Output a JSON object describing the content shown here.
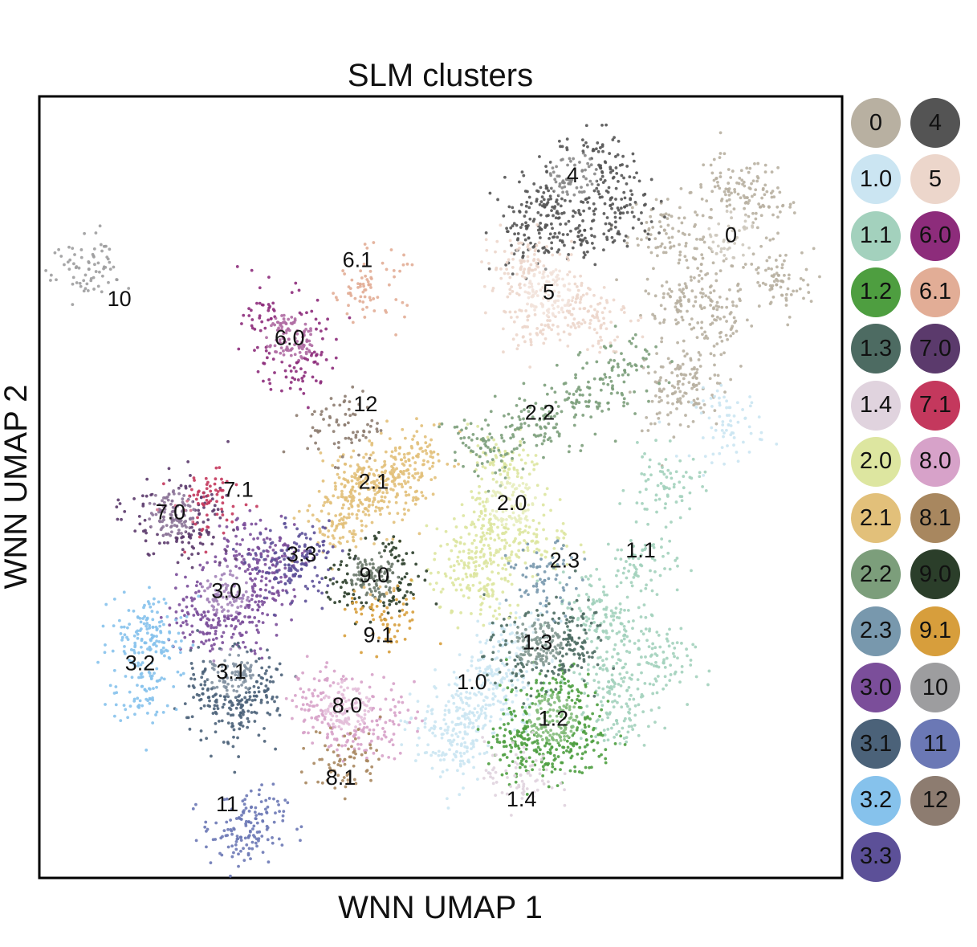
{
  "chart_data": {
    "type": "scatter",
    "title": "SLM clusters",
    "xlabel": "WNN UMAP 1",
    "ylabel": "WNN UMAP 2",
    "xlim": [
      0,
      100
    ],
    "ylim": [
      0,
      100
    ],
    "grid": false,
    "ticks": false,
    "legend_position": "right",
    "legend_layout": "two-column",
    "series": [
      {
        "name": "0",
        "color": "#b8b0a1",
        "points": [
          [
            84.5,
            80
          ],
          [
            84,
            72
          ],
          [
            80,
            74
          ],
          [
            78,
            83
          ],
          [
            90,
            86
          ],
          [
            86,
            88
          ],
          [
            82,
            64
          ],
          [
            79,
            62
          ],
          [
            92,
            76
          ]
        ]
      },
      {
        "name": "1.0",
        "color": "#cbe5f2",
        "points": [
          [
            56,
            26
          ],
          [
            58,
            23
          ],
          [
            50,
            19
          ],
          [
            54,
            21
          ],
          [
            59,
            30
          ],
          [
            52,
            16
          ],
          [
            86,
            58
          ]
        ]
      },
      {
        "name": "1.1",
        "color": "#a3d1bd",
        "points": [
          [
            75,
            40
          ],
          [
            73,
            31
          ],
          [
            71,
            25
          ],
          [
            78,
            50
          ],
          [
            69,
            35
          ],
          [
            77,
            27
          ],
          [
            72,
            20
          ]
        ]
      },
      {
        "name": "1.2",
        "color": "#4e9e40",
        "points": [
          [
            64,
            20
          ],
          [
            62,
            16
          ],
          [
            66,
            23
          ],
          [
            60,
            18
          ],
          [
            67,
            17
          ],
          [
            63,
            21
          ]
        ]
      },
      {
        "name": "1.3",
        "color": "#4d6b62",
        "points": [
          [
            62,
            30
          ],
          [
            60,
            28
          ],
          [
            64,
            29
          ],
          [
            66,
            31
          ]
        ]
      },
      {
        "name": "1.4",
        "color": "#e0d3de",
        "points": [
          [
            60,
            13
          ]
        ]
      },
      {
        "name": "2.0",
        "color": "#dde6a0",
        "points": [
          [
            57,
            46
          ],
          [
            59,
            49
          ],
          [
            55,
            43
          ],
          [
            62,
            43
          ],
          [
            58,
            53
          ],
          [
            53,
            40
          ],
          [
            56,
            36
          ]
        ]
      },
      {
        "name": "2.1",
        "color": "#e2c07a",
        "points": [
          [
            42,
            50
          ],
          [
            45,
            52
          ],
          [
            40,
            48
          ],
          [
            47,
            54
          ],
          [
            37,
            45
          ],
          [
            39,
            50
          ]
        ]
      },
      {
        "name": "2.2",
        "color": "#7c9e7b",
        "points": [
          [
            62,
            58
          ],
          [
            67,
            61
          ],
          [
            55,
            55
          ],
          [
            73,
            65
          ]
        ]
      },
      {
        "name": "2.3",
        "color": "#7898ad",
        "points": [
          [
            63,
            38
          ]
        ]
      },
      {
        "name": "3.0",
        "color": "#7b4e9a",
        "points": [
          [
            22,
            36
          ],
          [
            26,
            42
          ],
          [
            20,
            33
          ],
          [
            27,
            36
          ],
          [
            24,
            33
          ],
          [
            29,
            40
          ]
        ]
      },
      {
        "name": "3.1",
        "color": "#4b6279",
        "points": [
          [
            23,
            25
          ],
          [
            21,
            23
          ],
          [
            25,
            21
          ],
          [
            27,
            25
          ]
        ]
      },
      {
        "name": "3.2",
        "color": "#86c2ec",
        "points": [
          [
            13,
            30
          ],
          [
            13,
            24
          ],
          [
            14,
            32
          ]
        ]
      },
      {
        "name": "3.3",
        "color": "#5c5098",
        "points": [
          [
            31,
            40
          ],
          [
            33,
            41
          ]
        ]
      },
      {
        "name": "4",
        "color": "#545454",
        "points": [
          [
            66,
            89
          ],
          [
            63,
            86
          ],
          [
            61,
            82
          ],
          [
            70,
            91
          ],
          [
            73,
            86
          ],
          [
            68,
            83
          ]
        ]
      },
      {
        "name": "5",
        "color": "#ecd6cb",
        "points": [
          [
            63,
            76
          ],
          [
            60,
            78
          ],
          [
            66,
            74
          ],
          [
            61,
            72
          ],
          [
            69,
            72
          ]
        ]
      },
      {
        "name": "6.0",
        "color": "#8d2c7b",
        "points": [
          [
            31,
            69
          ],
          [
            32,
            66
          ],
          [
            30,
            71
          ]
        ]
      },
      {
        "name": "6.1",
        "color": "#e2ad96",
        "points": [
          [
            41,
            76
          ]
        ]
      },
      {
        "name": "7.0",
        "color": "#5b3a6c",
        "points": [
          [
            15,
            47
          ],
          [
            17,
            45
          ],
          [
            19,
            46
          ]
        ]
      },
      {
        "name": "7.1",
        "color": "#c4385d",
        "points": [
          [
            21,
            48
          ]
        ]
      },
      {
        "name": "8.0",
        "color": "#d7a2c9",
        "points": [
          [
            38,
            21
          ],
          [
            37,
            20
          ],
          [
            42,
            20
          ],
          [
            36,
            23
          ]
        ]
      },
      {
        "name": "8.1",
        "color": "#a8875f",
        "points": [
          [
            38,
            15
          ]
        ]
      },
      {
        "name": "9.0",
        "color": "#2b3e2a",
        "points": [
          [
            42,
            38
          ],
          [
            44,
            39
          ],
          [
            40,
            38
          ]
        ]
      },
      {
        "name": "9.1",
        "color": "#d79e3c",
        "points": [
          [
            43,
            33
          ]
        ]
      },
      {
        "name": "10",
        "color": "#9d9d9f",
        "points": [
          [
            6,
            78
          ]
        ]
      },
      {
        "name": "11",
        "color": "#6b78b5",
        "points": [
          [
            26,
            7
          ],
          [
            25,
            5
          ]
        ]
      },
      {
        "name": "12",
        "color": "#8d7c70",
        "points": [
          [
            38,
            58
          ]
        ]
      }
    ],
    "cluster_labels": [
      {
        "text": "0",
        "x": 86.3,
        "y": 82.4,
        "badge": true
      },
      {
        "text": "4",
        "x": 66.5,
        "y": 90.1,
        "badge": true
      },
      {
        "text": "5",
        "x": 63.5,
        "y": 75.1,
        "badge": true
      },
      {
        "text": "6.0",
        "x": 31.1,
        "y": 69.2,
        "badge": true
      },
      {
        "text": "6.1",
        "x": 39.6,
        "y": 79.2,
        "badge": false
      },
      {
        "text": "10",
        "x": 9.8,
        "y": 74.2,
        "badge": false
      },
      {
        "text": "12",
        "x": 40.6,
        "y": 60.7,
        "badge": false
      },
      {
        "text": "2.2",
        "x": 62.4,
        "y": 59.6,
        "badge": false
      },
      {
        "text": "2.1",
        "x": 41.6,
        "y": 50.7,
        "badge": false
      },
      {
        "text": "2.0",
        "x": 58.9,
        "y": 48.0,
        "badge": true
      },
      {
        "text": "7.1",
        "x": 24.7,
        "y": 49.7,
        "badge": false
      },
      {
        "text": "7.0",
        "x": 16.2,
        "y": 46.8,
        "badge": true
      },
      {
        "text": "3.3",
        "x": 32.6,
        "y": 41.4,
        "badge": false
      },
      {
        "text": "9.0",
        "x": 41.7,
        "y": 38.7,
        "badge": true
      },
      {
        "text": "2.3",
        "x": 65.5,
        "y": 40.6,
        "badge": false
      },
      {
        "text": "1.1",
        "x": 75.0,
        "y": 41.9,
        "badge": false
      },
      {
        "text": "3.0",
        "x": 23.2,
        "y": 36.7,
        "badge": true
      },
      {
        "text": "9.1",
        "x": 42.2,
        "y": 31.0,
        "badge": false
      },
      {
        "text": "1.3",
        "x": 62.1,
        "y": 30.1,
        "badge": true
      },
      {
        "text": "3.2",
        "x": 12.4,
        "y": 27.4,
        "badge": false
      },
      {
        "text": "3.1",
        "x": 23.8,
        "y": 26.3,
        "badge": true
      },
      {
        "text": "1.0",
        "x": 53.9,
        "y": 25.0,
        "badge": false
      },
      {
        "text": "8.0",
        "x": 38.3,
        "y": 22.0,
        "badge": true
      },
      {
        "text": "1.2",
        "x": 64.1,
        "y": 20.3,
        "badge": true
      },
      {
        "text": "8.1",
        "x": 37.5,
        "y": 12.7,
        "badge": false
      },
      {
        "text": "1.4",
        "x": 60.1,
        "y": 9.9,
        "badge": false
      },
      {
        "text": "11",
        "x": 23.3,
        "y": 9.3,
        "badge": false
      }
    ]
  },
  "legend": {
    "items": [
      {
        "label": "0",
        "color": "#b8b0a1"
      },
      {
        "label": "4",
        "color": "#545454"
      },
      {
        "label": "1.0",
        "color": "#cbe5f2"
      },
      {
        "label": "5",
        "color": "#ecd6cb"
      },
      {
        "label": "1.1",
        "color": "#a3d1bd"
      },
      {
        "label": "6.0",
        "color": "#8d2c7b"
      },
      {
        "label": "1.2",
        "color": "#4e9e40"
      },
      {
        "label": "6.1",
        "color": "#e2ad96"
      },
      {
        "label": "1.3",
        "color": "#4d6b62"
      },
      {
        "label": "7.0",
        "color": "#5b3a6c"
      },
      {
        "label": "1.4",
        "color": "#e0d3de"
      },
      {
        "label": "7.1",
        "color": "#c4385d"
      },
      {
        "label": "2.0",
        "color": "#dde6a0"
      },
      {
        "label": "8.0",
        "color": "#d7a2c9"
      },
      {
        "label": "2.1",
        "color": "#e2c07a"
      },
      {
        "label": "8.1",
        "color": "#a8875f"
      },
      {
        "label": "2.2",
        "color": "#7c9e7b"
      },
      {
        "label": "9.0",
        "color": "#2b3e2a"
      },
      {
        "label": "2.3",
        "color": "#7898ad"
      },
      {
        "label": "9.1",
        "color": "#d79e3c"
      },
      {
        "label": "3.0",
        "color": "#7b4e9a"
      },
      {
        "label": "10",
        "color": "#9d9d9f"
      },
      {
        "label": "3.1",
        "color": "#4b6279"
      },
      {
        "label": "11",
        "color": "#6b78b5"
      },
      {
        "label": "3.2",
        "color": "#86c2ec"
      },
      {
        "label": "12",
        "color": "#8d7c70"
      },
      {
        "label": "3.3",
        "color": "#5c5098"
      }
    ]
  }
}
